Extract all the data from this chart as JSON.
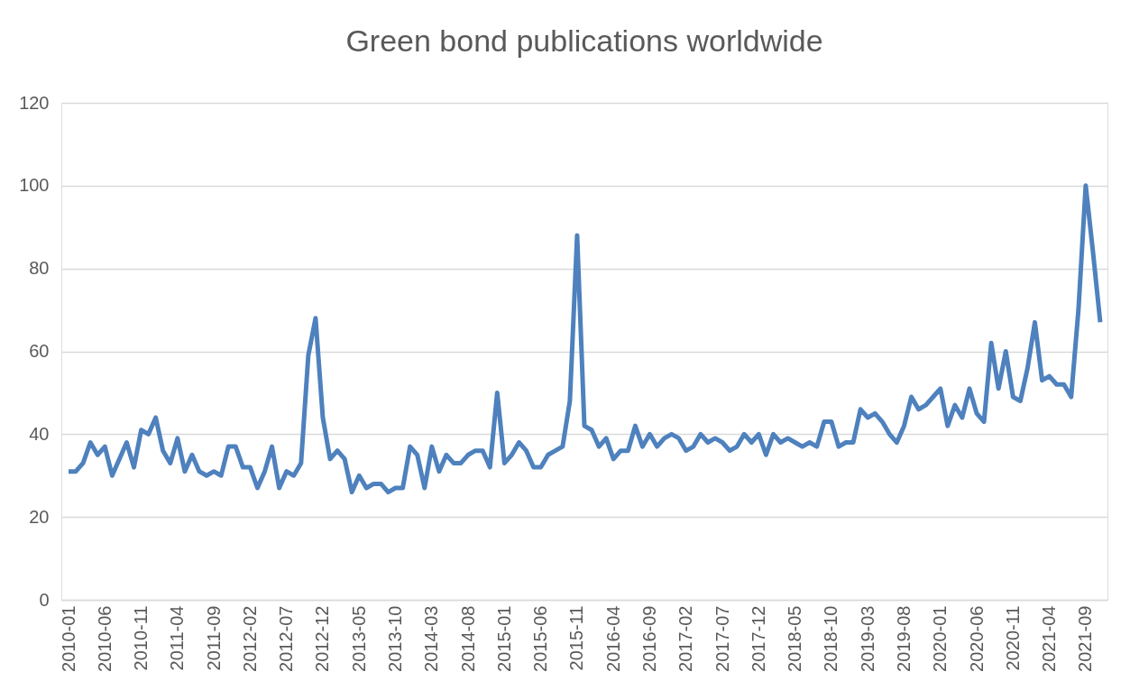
{
  "chart_data": {
    "type": "line",
    "title": "Green bond publications worldwide",
    "categories": [
      "2010-01",
      null,
      null,
      null,
      null,
      "2010-06",
      null,
      null,
      null,
      null,
      "2010-11",
      null,
      null,
      null,
      null,
      "2011-04",
      null,
      null,
      null,
      null,
      "2011-09",
      null,
      null,
      null,
      null,
      "2012-02",
      null,
      null,
      null,
      null,
      "2012-07",
      null,
      null,
      null,
      null,
      "2012-12",
      null,
      null,
      null,
      null,
      "2013-05",
      null,
      null,
      null,
      null,
      "2013-10",
      null,
      null,
      null,
      null,
      "2014-03",
      null,
      null,
      null,
      null,
      "2014-08",
      null,
      null,
      null,
      null,
      "2015-01",
      null,
      null,
      null,
      null,
      "2015-06",
      null,
      null,
      null,
      null,
      "2015-11",
      null,
      null,
      null,
      null,
      "2016-04",
      null,
      null,
      null,
      null,
      "2016-09",
      null,
      null,
      null,
      null,
      "2017-02",
      null,
      null,
      null,
      null,
      "2017-07",
      null,
      null,
      null,
      null,
      "2017-12",
      null,
      null,
      null,
      null,
      "2018-05",
      null,
      null,
      null,
      null,
      "2018-10",
      null,
      null,
      null,
      null,
      "2019-03",
      null,
      null,
      null,
      null,
      "2019-08",
      null,
      null,
      null,
      null,
      "2020-01",
      null,
      null,
      null,
      null,
      "2020-06",
      null,
      null,
      null,
      null,
      "2020-11",
      null,
      null,
      null,
      null,
      "2021-04",
      null,
      null,
      null,
      null,
      "2021-09",
      null,
      null
    ],
    "series": [
      {
        "color": "#4e81bd",
        "values": [
          31,
          31,
          33,
          38,
          35,
          37,
          30,
          34,
          38,
          32,
          41,
          40,
          44,
          36,
          33,
          39,
          31,
          35,
          31,
          30,
          31,
          30,
          37,
          37,
          32,
          32,
          27,
          31,
          37,
          27,
          31,
          30,
          33,
          59,
          68,
          44,
          34,
          36,
          34,
          26,
          30,
          27,
          28,
          28,
          26,
          27,
          27,
          37,
          35,
          27,
          37,
          31,
          35,
          33,
          33,
          35,
          36,
          36,
          32,
          50,
          33,
          35,
          38,
          36,
          32,
          32,
          35,
          36,
          37,
          48,
          88,
          42,
          41,
          37,
          39,
          34,
          36,
          36,
          42,
          37,
          40,
          37,
          39,
          40,
          39,
          36,
          37,
          40,
          38,
          39,
          38,
          36,
          37,
          40,
          38,
          40,
          35,
          40,
          38,
          39,
          38,
          37,
          38,
          37,
          43,
          43,
          37,
          38,
          38,
          46,
          44,
          45,
          43,
          40,
          38,
          42,
          49,
          46,
          47,
          49,
          51,
          42,
          47,
          44,
          51,
          45,
          43,
          62,
          51,
          60,
          49,
          48,
          56,
          67,
          53,
          54,
          52,
          52,
          49,
          70,
          100,
          84,
          67
        ]
      }
    ],
    "ylim": [
      0,
      120
    ],
    "yticks": [
      0,
      20,
      40,
      60,
      80,
      100,
      120
    ],
    "grid": "y",
    "marker": "none",
    "line_style": "solid"
  }
}
